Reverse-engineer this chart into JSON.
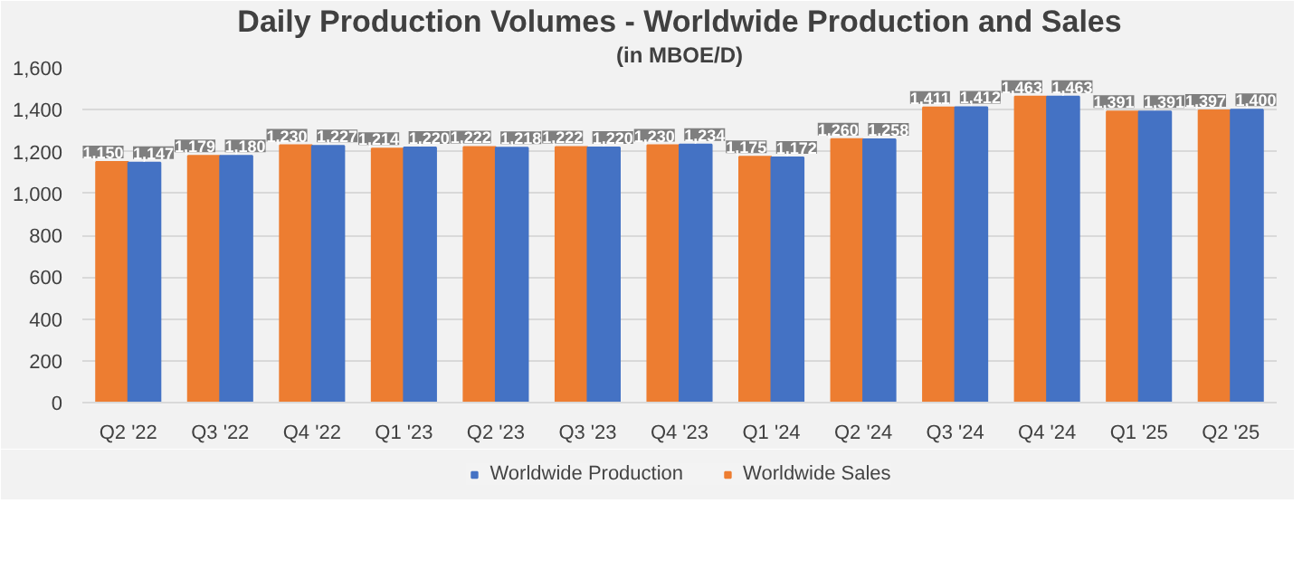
{
  "chart_data": {
    "type": "bar",
    "title": "Daily Production Volumes - Worldwide Production and Sales",
    "subtitle": "(in MBOE/D)",
    "categories": [
      "Q2 '22",
      "Q3 '22",
      "Q4 '22",
      "Q1 '23",
      "Q2 '23",
      "Q3 '23",
      "Q4 '23",
      "Q1 '24",
      "Q2 '24",
      "Q3 '24",
      "Q4 '24",
      "Q1 '25",
      "Q2 '25"
    ],
    "series": [
      {
        "name": "Worldwide Sales",
        "color": "#ed7d31",
        "values": [
          1150,
          1179,
          1230,
          1214,
          1222,
          1222,
          1230,
          1175,
          1260,
          1411,
          1463,
          1391,
          1397
        ],
        "value_labels": [
          "1,150",
          "1,179",
          "1,230",
          "1,214",
          "1,222",
          "1,222",
          "1,230",
          "1,175",
          "1,260",
          "1,411",
          "1,463",
          "1,391",
          "1,397"
        ]
      },
      {
        "name": "Worldwide Production",
        "color": "#4472c4",
        "values": [
          1147,
          1180,
          1227,
          1220,
          1218,
          1220,
          1234,
          1172,
          1258,
          1412,
          1463,
          1391,
          1400
        ],
        "value_labels": [
          "1,147",
          "1,180",
          "1,227",
          "1,220",
          "1,218",
          "1,220",
          "1,234",
          "1,172",
          "1,258",
          "1,412",
          "1,463",
          "1,391",
          "1,400"
        ]
      }
    ],
    "ylim": [
      0,
      1600
    ],
    "yticks": [
      0,
      {
        "value": 200,
        "label": "200"
      },
      {
        "value": 400,
        "label": "400"
      },
      {
        "value": 600,
        "label": "600"
      },
      {
        "value": 800,
        "label": "800"
      },
      {
        "value": 1000,
        "label": "1,000"
      },
      {
        "value": 1200,
        "label": "1,200"
      },
      {
        "value": 1400,
        "label": "1,400"
      },
      {
        "value": 1600,
        "label": "1,600"
      }
    ],
    "grid": "y",
    "legend": "bottom"
  }
}
